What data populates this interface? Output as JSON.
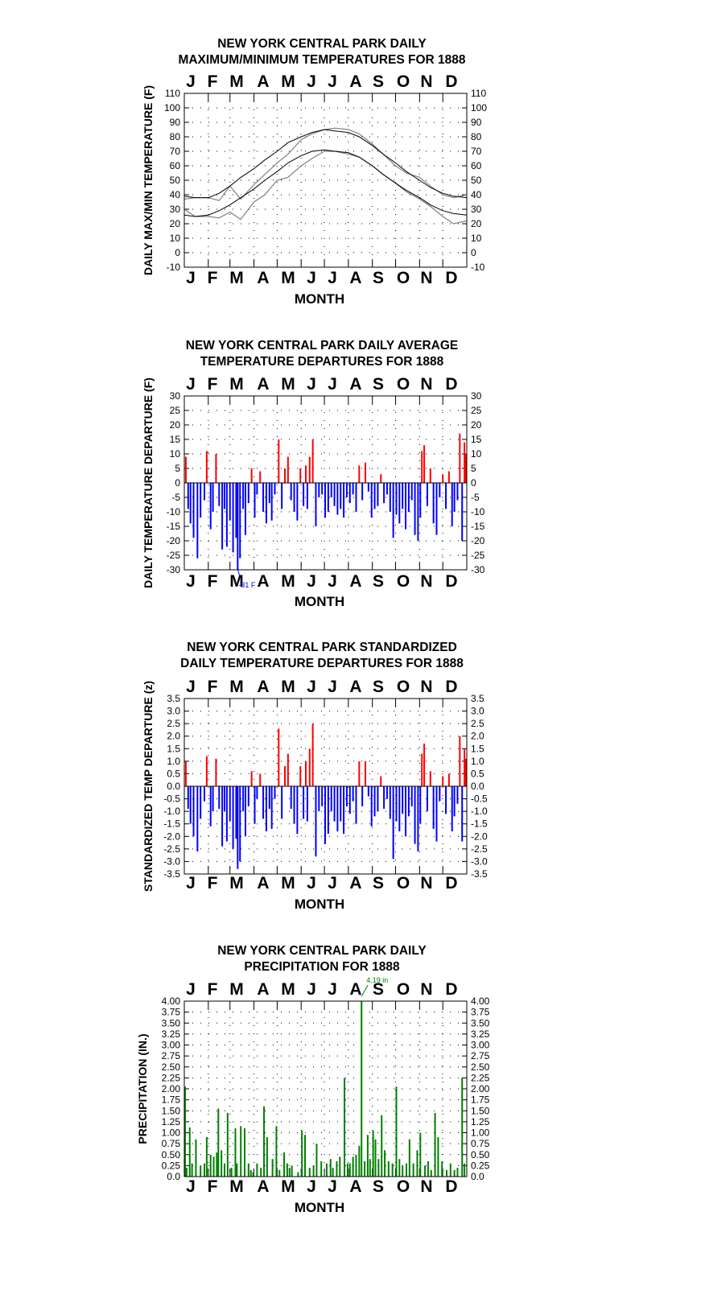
{
  "months": [
    "J",
    "F",
    "M",
    "A",
    "M",
    "J",
    "J",
    "A",
    "S",
    "O",
    "N",
    "D"
  ],
  "colors": {
    "max_min_obs": "#808080",
    "normals": "#000000",
    "warm": "#ff0000",
    "cold": "#0000ff",
    "precip": "#008000"
  },
  "chart_data": [
    {
      "id": "temps",
      "type": "line",
      "title": [
        "NEW YORK CENTRAL PARK DAILY",
        "MAXIMUM/MINIMUM TEMPERATURES FOR 1888"
      ],
      "xlabel": "MONTH",
      "ylabel": "DAILY MAX/MIN TEMPERATURE (F)",
      "ylim": [
        -10,
        110
      ],
      "yticks": [
        "-10",
        "0",
        "10",
        "20",
        "30",
        "40",
        "50",
        "60",
        "70",
        "80",
        "90",
        "100",
        "110"
      ],
      "grid": true,
      "series": [
        {
          "x": [
            1,
            15,
            32,
            46,
            60,
            74,
            91,
            105,
            121,
            135,
            152,
            166,
            182,
            196,
            213,
            227,
            244,
            258,
            274,
            288,
            305,
            319,
            335,
            349,
            366
          ],
          "values": [
            30,
            25,
            25,
            24,
            28,
            23,
            35,
            40,
            50,
            52,
            60,
            65,
            70,
            70,
            68,
            66,
            60,
            54,
            48,
            42,
            37,
            32,
            25,
            20,
            22
          ]
        },
        {
          "x": [
            1,
            15,
            32,
            46,
            60,
            74,
            91,
            105,
            121,
            135,
            152,
            166,
            182,
            196,
            213,
            227,
            244,
            258,
            274,
            288,
            305,
            319,
            335,
            349,
            366
          ],
          "values": [
            37,
            38,
            38,
            36,
            46,
            37,
            47,
            54,
            62,
            68,
            78,
            82,
            85,
            86,
            85,
            82,
            75,
            68,
            60,
            55,
            52,
            46,
            40,
            38,
            40
          ]
        },
        {
          "x": [
            1,
            15,
            32,
            46,
            60,
            74,
            91,
            105,
            121,
            135,
            152,
            166,
            182,
            196,
            213,
            227,
            244,
            258,
            274,
            288,
            305,
            319,
            335,
            349,
            366
          ],
          "values": [
            26,
            25,
            26,
            29,
            33,
            38,
            44,
            50,
            56,
            62,
            67,
            70,
            71,
            70,
            69,
            66,
            60,
            54,
            48,
            43,
            38,
            33,
            29,
            27,
            26
          ]
        },
        {
          "x": [
            1,
            15,
            32,
            46,
            60,
            74,
            91,
            105,
            121,
            135,
            152,
            166,
            182,
            196,
            213,
            227,
            244,
            258,
            274,
            288,
            305,
            319,
            335,
            349,
            366
          ],
          "values": [
            39,
            38,
            38,
            41,
            46,
            52,
            58,
            64,
            70,
            76,
            80,
            83,
            85,
            84,
            83,
            80,
            74,
            68,
            62,
            56,
            50,
            45,
            41,
            39,
            38
          ]
        }
      ]
    },
    {
      "id": "departures",
      "type": "bar",
      "title": [
        "NEW YORK CENTRAL PARK DAILY AVERAGE",
        "TEMPERATURE DEPARTURES FOR 1888"
      ],
      "xlabel": "MONTH",
      "ylabel": "DAILY TEMPERATURE DEPARTURE (F)",
      "ylim": [
        -30,
        30
      ],
      "yticks": [
        "-30",
        "-25",
        "-20",
        "-15",
        "-10",
        "-5",
        "0",
        "5",
        "10",
        "15",
        "20",
        "25",
        "30"
      ],
      "grid": true,
      "annotation": {
        "text": "-31 F",
        "day": 70
      },
      "x": [
        3,
        6,
        9,
        13,
        18,
        22,
        27,
        30,
        35,
        38,
        42,
        46,
        50,
        53,
        56,
        60,
        64,
        68,
        70,
        73,
        77,
        80,
        84,
        88,
        92,
        95,
        99,
        103,
        107,
        111,
        114,
        118,
        123,
        127,
        131,
        135,
        139,
        143,
        147,
        151,
        155,
        158,
        160,
        163,
        167,
        171,
        175,
        179,
        183,
        187,
        191,
        195,
        199,
        203,
        207,
        211,
        215,
        219,
        223,
        227,
        231,
        235,
        239,
        243,
        247,
        251,
        255,
        259,
        263,
        267,
        271,
        275,
        279,
        283,
        287,
        291,
        295,
        299,
        303,
        306,
        308,
        311,
        315,
        319,
        323,
        327,
        331,
        335,
        339,
        343,
        347,
        350,
        354,
        357,
        360,
        363,
        365
      ],
      "values": [
        9,
        -9,
        -14,
        -19,
        -26,
        -12,
        -6,
        11,
        -16,
        -10,
        10,
        -8,
        -23,
        -9,
        -22,
        -13,
        -24,
        -19,
        -31,
        -26,
        -9,
        -18,
        -7,
        5,
        -12,
        -4,
        4,
        -10,
        -14,
        -7,
        -13,
        -4,
        15,
        -9,
        5,
        9,
        -6,
        -10,
        -13,
        5,
        -8,
        6,
        -9,
        9,
        15,
        -15,
        -5,
        -4,
        -12,
        -10,
        -5,
        -8,
        -11,
        -9,
        -12,
        -5,
        -7,
        -4,
        -10,
        6,
        -6,
        7,
        -3,
        -12,
        -9,
        -8,
        3,
        -7,
        -4,
        -10,
        -19,
        -11,
        -14,
        -9,
        -16,
        -10,
        -6,
        -18,
        -20,
        -12,
        11,
        13,
        -8,
        5,
        -14,
        -18,
        -5,
        3,
        -9,
        4,
        -15,
        -10,
        -6,
        17,
        -20,
        14,
        10
      ]
    },
    {
      "id": "standardized",
      "type": "bar",
      "title": [
        "NEW YORK CENTRAL PARK STANDARDIZED",
        "DAILY TEMPERATURE DEPARTURES FOR 1888"
      ],
      "xlabel": "MONTH",
      "ylabel": "STANDARDIZED TEMP DEPARTURE (z)",
      "ylim": [
        -3.5,
        3.5
      ],
      "yticks": [
        "-3.5",
        "-3.0",
        "-2.5",
        "-2.0",
        "-1.5",
        "-1.0",
        "-0.5",
        "0.0",
        "0.5",
        "1.0",
        "1.5",
        "2.0",
        "2.5",
        "3.0",
        "3.5"
      ],
      "grid": true,
      "x": [
        3,
        6,
        9,
        13,
        18,
        22,
        27,
        30,
        35,
        38,
        42,
        46,
        50,
        53,
        56,
        60,
        64,
        68,
        70,
        73,
        77,
        80,
        84,
        88,
        92,
        95,
        99,
        103,
        107,
        111,
        114,
        118,
        123,
        127,
        131,
        135,
        139,
        143,
        147,
        151,
        155,
        158,
        160,
        163,
        167,
        171,
        175,
        179,
        183,
        187,
        191,
        195,
        199,
        203,
        207,
        211,
        215,
        219,
        223,
        227,
        231,
        235,
        239,
        243,
        247,
        251,
        255,
        259,
        263,
        267,
        271,
        275,
        279,
        283,
        287,
        291,
        295,
        299,
        303,
        306,
        308,
        311,
        315,
        319,
        323,
        327,
        331,
        335,
        339,
        343,
        347,
        350,
        354,
        357,
        360,
        363,
        365
      ],
      "values": [
        1.0,
        -0.9,
        -1.5,
        -2.0,
        -2.6,
        -1.3,
        -0.6,
        1.2,
        -1.6,
        -1.0,
        1.1,
        -0.9,
        -2.4,
        -1.0,
        -2.2,
        -1.4,
        -2.5,
        -2.1,
        -3.3,
        -3.0,
        -1.0,
        -2.0,
        -0.8,
        0.6,
        -1.5,
        -0.5,
        0.5,
        -1.3,
        -1.8,
        -0.9,
        -1.7,
        -0.5,
        2.3,
        -1.3,
        0.8,
        1.3,
        -0.9,
        -1.5,
        -1.9,
        0.8,
        -1.3,
        1.0,
        -1.4,
        1.5,
        2.5,
        -2.8,
        -1.0,
        -0.8,
        -2.3,
        -1.9,
        -1.0,
        -1.4,
        -1.8,
        -1.4,
        -1.9,
        -0.8,
        -1.1,
        -0.6,
        -1.5,
        1.0,
        -0.8,
        1.0,
        -0.4,
        -1.6,
        -1.2,
        -1.0,
        0.4,
        -0.9,
        -0.5,
        -1.3,
        -2.9,
        -1.4,
        -1.8,
        -1.1,
        -2.0,
        -1.2,
        -0.8,
        -2.3,
        -2.6,
        -1.5,
        1.3,
        1.7,
        -1.0,
        0.6,
        -1.7,
        -2.2,
        -0.6,
        0.4,
        -1.1,
        0.5,
        -1.8,
        -1.2,
        -0.7,
        2.0,
        -2.2,
        1.5,
        1.1
      ]
    },
    {
      "id": "precip",
      "type": "bar",
      "title": [
        "NEW YORK CENTRAL PARK DAILY",
        "PRECIPITATION FOR 1888"
      ],
      "xlabel": "MONTH",
      "ylabel": "PRECIPITATION (IN.)",
      "ylim": [
        0,
        4.0
      ],
      "yticks": [
        "0.0",
        "0.25",
        "0.50",
        "0.75",
        "1.00",
        "1.25",
        "1.50",
        "1.75",
        "2.00",
        "2.25",
        "2.50",
        "2.75",
        "3.00",
        "3.25",
        "3.50",
        "3.75",
        "4.00"
      ],
      "grid": true,
      "annotation": {
        "text": "4.19 in",
        "day": 230
      },
      "x": [
        2,
        4,
        8,
        11,
        16,
        22,
        27,
        30,
        35,
        39,
        43,
        45,
        49,
        53,
        57,
        62,
        67,
        69,
        74,
        79,
        84,
        87,
        90,
        95,
        100,
        104,
        108,
        115,
        120,
        124,
        130,
        134,
        137,
        140,
        148,
        153,
        157,
        163,
        168,
        172,
        178,
        185,
        190,
        193,
        198,
        202,
        208,
        212,
        215,
        219,
        223,
        227,
        230,
        234,
        238,
        241,
        245,
        248,
        252,
        256,
        260,
        265,
        270,
        275,
        279,
        283,
        288,
        292,
        297,
        302,
        306,
        312,
        316,
        320,
        325,
        329,
        334,
        340,
        345,
        350,
        354,
        360,
        363
      ],
      "values": [
        2.05,
        0.2,
        1.12,
        0.3,
        0.85,
        0.25,
        0.3,
        0.9,
        0.5,
        0.45,
        0.55,
        1.55,
        0.6,
        0.3,
        1.45,
        0.2,
        1.1,
        0.3,
        1.15,
        1.1,
        0.3,
        0.15,
        0.1,
        0.3,
        0.2,
        1.6,
        0.9,
        0.4,
        1.15,
        0.15,
        0.55,
        0.3,
        0.2,
        0.25,
        0.1,
        1.05,
        0.95,
        0.2,
        0.25,
        0.75,
        0.35,
        0.3,
        0.4,
        0.2,
        0.35,
        0.45,
        2.25,
        0.3,
        0.3,
        0.45,
        0.5,
        0.7,
        4.19,
        0.35,
        0.95,
        0.4,
        1.05,
        0.85,
        0.4,
        1.4,
        0.6,
        0.35,
        0.3,
        2.05,
        0.4,
        0.25,
        0.3,
        0.85,
        0.3,
        0.6,
        1.0,
        0.25,
        0.35,
        0.15,
        1.45,
        0.9,
        0.35,
        0.15,
        0.3,
        0.15,
        0.2,
        2.25,
        0.3
      ]
    }
  ]
}
